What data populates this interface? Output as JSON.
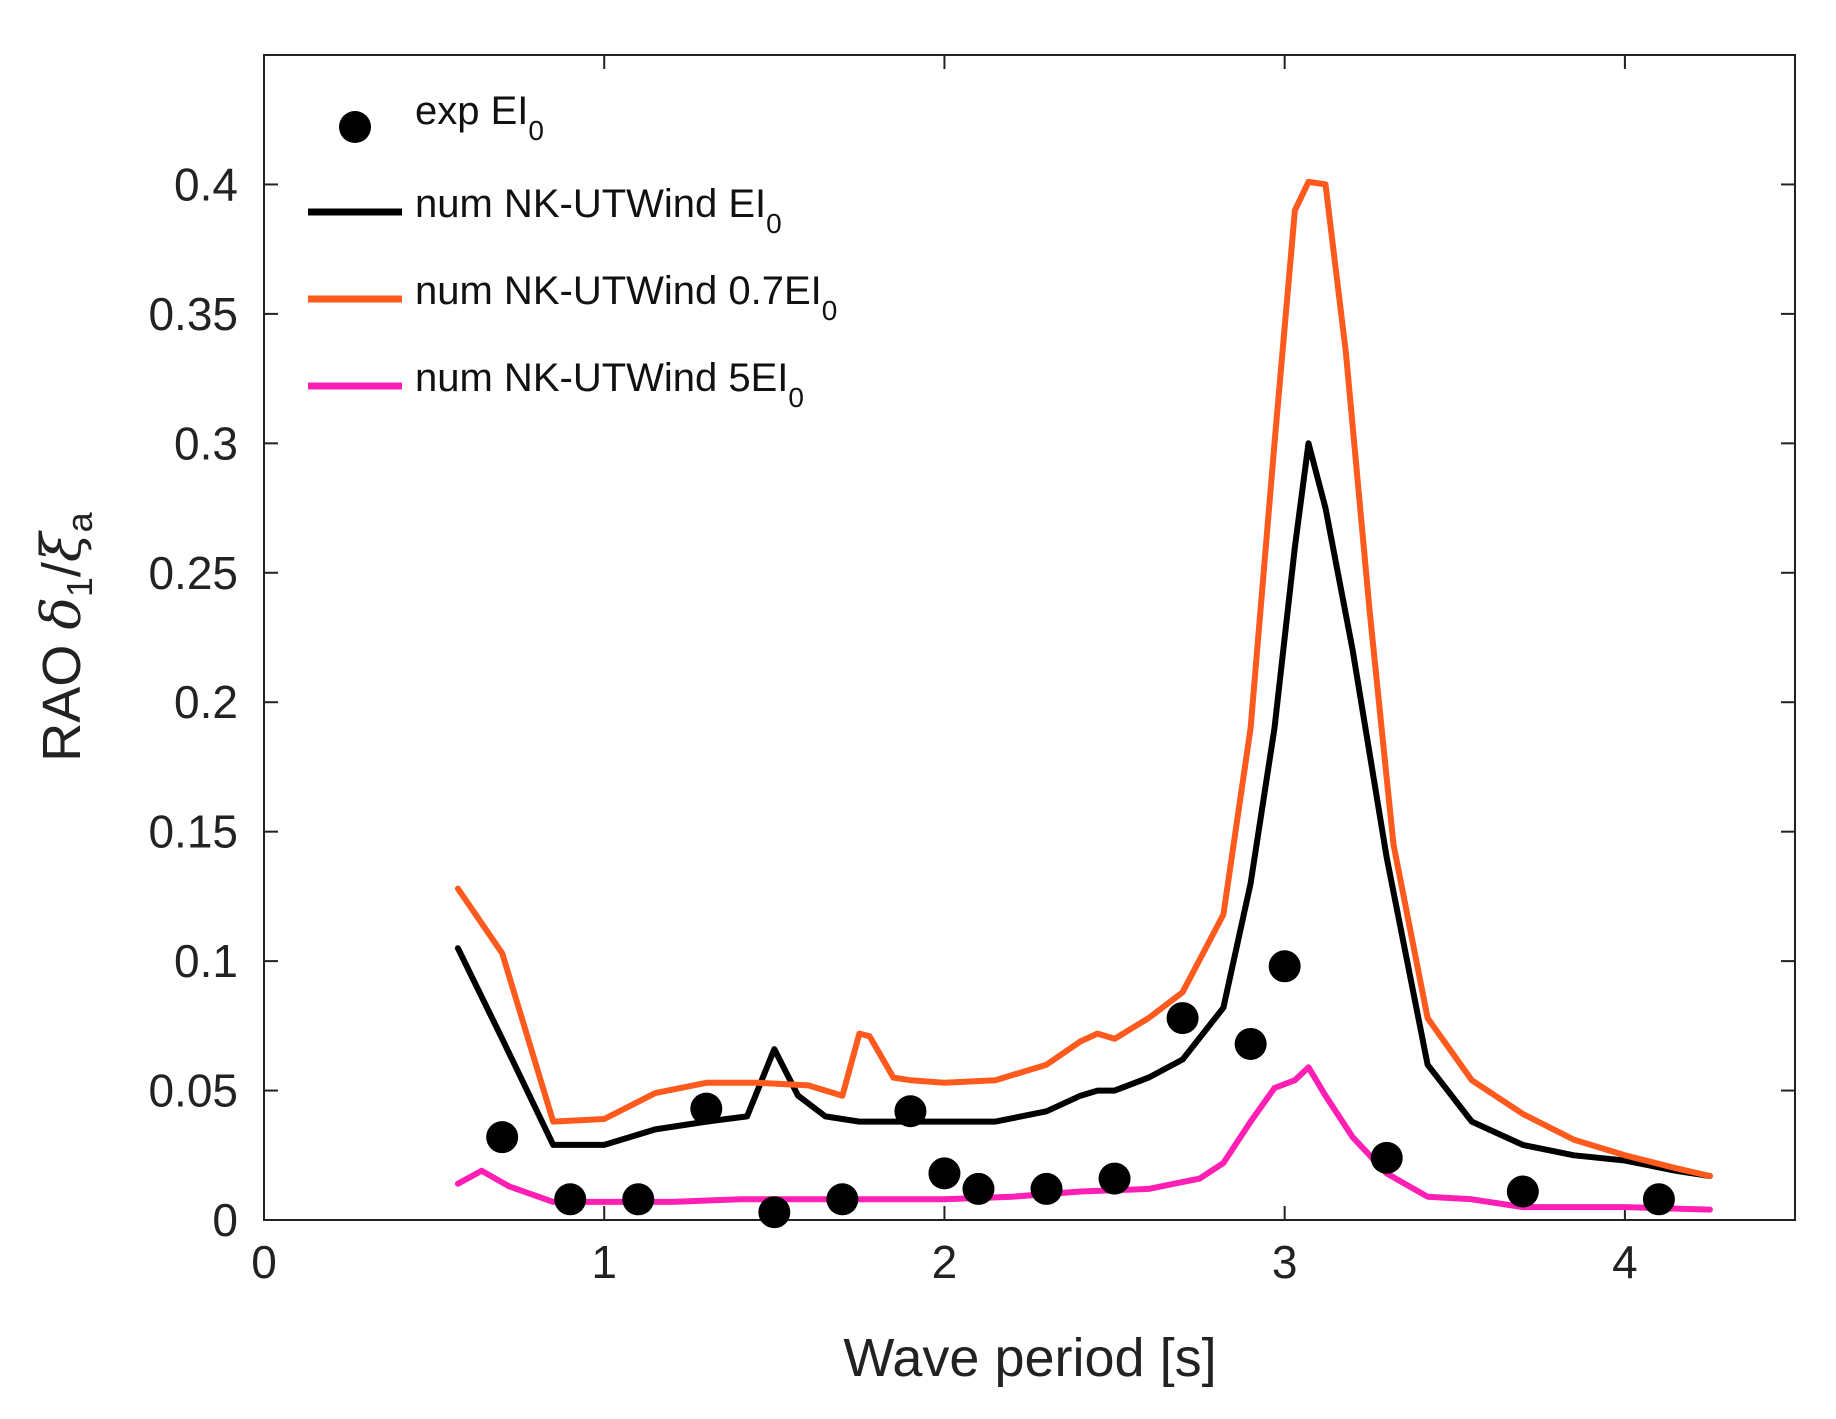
{
  "chart_data": {
    "type": "line",
    "title": "",
    "xlabel": "Wave period [s]",
    "ylabel": {
      "prefix": "RAO ",
      "delta": "δ",
      "delta_sub": "1",
      "slash": "/",
      "xi": "ξ",
      "xi_sub": "a"
    },
    "xlim": [
      0,
      4.5
    ],
    "ylim": [
      0,
      0.45
    ],
    "xticks": [
      0,
      1,
      2,
      3,
      4
    ],
    "yticks": [
      0,
      0.05,
      0.1,
      0.15,
      0.2,
      0.25,
      0.3,
      0.35,
      0.4
    ],
    "xtick_labels": [
      "0",
      "1",
      "2",
      "3",
      "4"
    ],
    "ytick_labels": [
      "0",
      "0.05",
      "0.1",
      "0.15",
      "0.2",
      "0.25",
      "0.3",
      "0.35",
      "0.4"
    ],
    "grid": false,
    "legend_position": "top-left",
    "series": [
      {
        "name": "exp EI0",
        "label_main": "exp EI",
        "label_sub": "0",
        "kind": "scatter",
        "color": "#000000",
        "x": [
          0.7,
          0.9,
          1.1,
          1.3,
          1.5,
          1.7,
          1.9,
          2.0,
          2.1,
          2.3,
          2.5,
          2.7,
          2.9,
          3.0,
          3.3,
          3.7,
          4.1
        ],
        "y": [
          0.032,
          0.008,
          0.008,
          0.043,
          0.003,
          0.008,
          0.042,
          0.018,
          0.012,
          0.012,
          0.016,
          0.078,
          0.068,
          0.098,
          0.024,
          0.011,
          0.008
        ]
      },
      {
        "name": "num NK-UTWind EI0",
        "label_main": "num NK-UTWind EI",
        "label_sub": "0",
        "kind": "line",
        "color": "#000000",
        "x": [
          0.57,
          0.7,
          0.85,
          1.0,
          1.15,
          1.3,
          1.42,
          1.5,
          1.57,
          1.65,
          1.75,
          1.9,
          2.0,
          2.15,
          2.3,
          2.4,
          2.45,
          2.5,
          2.6,
          2.7,
          2.82,
          2.9,
          2.97,
          3.03,
          3.07,
          3.12,
          3.2,
          3.3,
          3.42,
          3.55,
          3.7,
          3.85,
          4.0,
          4.15,
          4.25
        ],
        "y": [
          0.105,
          0.07,
          0.029,
          0.029,
          0.035,
          0.038,
          0.04,
          0.066,
          0.048,
          0.04,
          0.038,
          0.038,
          0.038,
          0.038,
          0.042,
          0.048,
          0.05,
          0.05,
          0.055,
          0.062,
          0.082,
          0.13,
          0.19,
          0.26,
          0.3,
          0.275,
          0.22,
          0.14,
          0.06,
          0.038,
          0.029,
          0.025,
          0.023,
          0.019,
          0.017
        ]
      },
      {
        "name": "num NK-UTWind 0.7EI0",
        "label_main": "num NK-UTWind 0.7EI",
        "label_sub": "0",
        "kind": "line",
        "color": "#ff5a1e",
        "x": [
          0.57,
          0.7,
          0.85,
          1.0,
          1.15,
          1.3,
          1.45,
          1.6,
          1.7,
          1.75,
          1.78,
          1.85,
          1.9,
          2.0,
          2.15,
          2.3,
          2.4,
          2.45,
          2.5,
          2.6,
          2.7,
          2.82,
          2.9,
          2.97,
          3.03,
          3.07,
          3.12,
          3.18,
          3.25,
          3.32,
          3.42,
          3.55,
          3.7,
          3.85,
          4.0,
          4.15,
          4.25
        ],
        "y": [
          0.128,
          0.103,
          0.038,
          0.039,
          0.049,
          0.053,
          0.053,
          0.052,
          0.048,
          0.072,
          0.071,
          0.055,
          0.054,
          0.053,
          0.054,
          0.06,
          0.069,
          0.072,
          0.07,
          0.078,
          0.088,
          0.118,
          0.19,
          0.3,
          0.39,
          0.401,
          0.4,
          0.335,
          0.235,
          0.145,
          0.078,
          0.054,
          0.041,
          0.031,
          0.025,
          0.02,
          0.017
        ]
      },
      {
        "name": "num NK-UTWind 5EI0",
        "label_main": "num NK-UTWind 5EI",
        "label_sub": "0",
        "kind": "line",
        "color": "#ff1fb4",
        "x": [
          0.57,
          0.64,
          0.72,
          0.85,
          1.0,
          1.2,
          1.4,
          1.6,
          1.8,
          2.0,
          2.2,
          2.4,
          2.6,
          2.75,
          2.82,
          2.9,
          2.97,
          3.03,
          3.07,
          3.12,
          3.2,
          3.3,
          3.42,
          3.55,
          3.7,
          3.85,
          4.0,
          4.25
        ],
        "y": [
          0.014,
          0.019,
          0.013,
          0.007,
          0.007,
          0.007,
          0.008,
          0.008,
          0.008,
          0.008,
          0.009,
          0.011,
          0.012,
          0.016,
          0.022,
          0.038,
          0.051,
          0.054,
          0.059,
          0.048,
          0.032,
          0.018,
          0.009,
          0.008,
          0.005,
          0.005,
          0.005,
          0.004
        ]
      }
    ]
  }
}
